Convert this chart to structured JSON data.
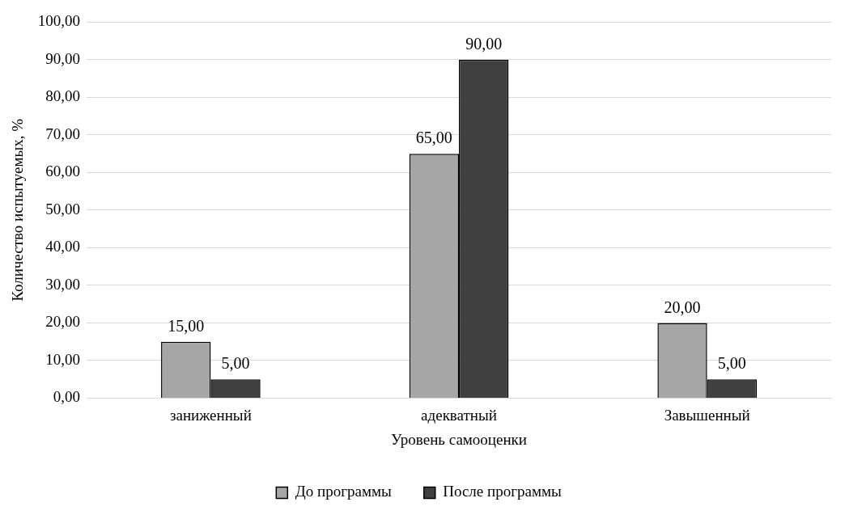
{
  "chart_data": {
    "type": "bar",
    "xlabel": "Уровень самооценки",
    "ylabel": "Количество испытуемых, %",
    "categories": [
      "заниженный",
      "адекватный",
      "Завышенный"
    ],
    "series": [
      {
        "name": "До программы",
        "color": "#a6a6a6",
        "values": [
          15,
          65,
          20
        ],
        "value_labels": [
          "15,00",
          "65,00",
          "20,00"
        ]
      },
      {
        "name": "После программы",
        "color": "#404040",
        "values": [
          5,
          90,
          5
        ],
        "value_labels": [
          "5,00",
          "90,00",
          "5,00"
        ]
      }
    ],
    "ylim": [
      0,
      100
    ],
    "yticks": [
      {
        "value": 0,
        "label": "0,00"
      },
      {
        "value": 10,
        "label": "10,00"
      },
      {
        "value": 20,
        "label": "20,00"
      },
      {
        "value": 30,
        "label": "30,00"
      },
      {
        "value": 40,
        "label": "40,00"
      },
      {
        "value": 50,
        "label": "50,00"
      },
      {
        "value": 60,
        "label": "60,00"
      },
      {
        "value": 70,
        "label": "70,00"
      },
      {
        "value": 80,
        "label": "80,00"
      },
      {
        "value": 90,
        "label": "90,00"
      },
      {
        "value": 100,
        "label": "100,00"
      }
    ],
    "grid": "y",
    "legend": "bottom"
  }
}
